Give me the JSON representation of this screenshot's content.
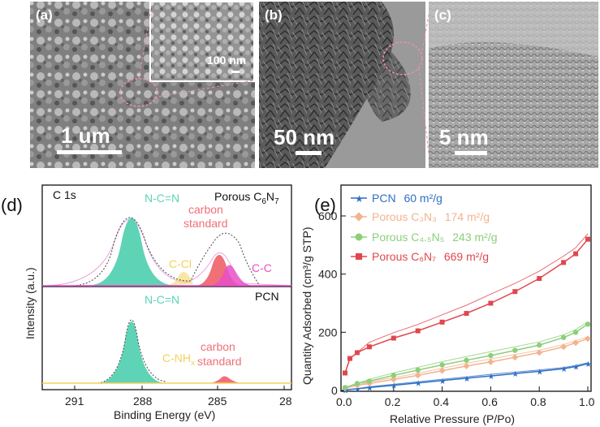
{
  "figure": {
    "panel_a": {
      "label": "(a)",
      "scale_main": "1 um",
      "scale_inset": "100 nm"
    },
    "panel_b": {
      "label": "(b)",
      "scale": "50 nm"
    },
    "panel_c": {
      "label": "(c)",
      "scale": "5 nm"
    },
    "panel_d": {
      "label": "(d)",
      "corner": "C 1s",
      "top_title": "Porous C",
      "top_sub6": "6",
      "top_N": "N",
      "top_sub7": "7",
      "bottom_title": "PCN",
      "xlabel": "Binding Energy (eV)",
      "ylabel": "Intensity (a.u.)",
      "xticks": [
        "291",
        "288",
        "285",
        "28"
      ],
      "ann": {
        "ncn_top": "N-C=N",
        "carbon_top_1": "carbon",
        "carbon_top_2": "standard",
        "ccl": "C-Cl",
        "cc": "C-C",
        "ncn_bot": "N-C=N",
        "cnh_main": "C-NH",
        "cnh_sub": "x",
        "carbon_bot_1": "carbon",
        "carbon_bot_2": "standard"
      },
      "colors": {
        "ncn": "#5fd3b6",
        "carbon": "#f07078",
        "ccl": "#f3d25a",
        "cc": "#e84fc8",
        "base": "#e6a7e0"
      }
    },
    "panel_e": {
      "label": "(e)",
      "xlabel": "Relative Pressure (P/Po)",
      "ylabel": "Quantity Adsorbed (cm³/g STP)",
      "xticks": [
        "0.0",
        "0.2",
        "0.4",
        "0.6",
        "0.8",
        "1.0"
      ],
      "yticks": [
        "0",
        "200",
        "400",
        "600"
      ],
      "legend": [
        {
          "name": "PCN",
          "value": "60 m²/g",
          "color": "#2f6fc4"
        },
        {
          "name": "Porous C₃N₃",
          "value": "174 m²/g",
          "color": "#f2b38f"
        },
        {
          "name": "Porous C₄.₅N₅",
          "value": "243 m²/g",
          "color": "#8ccf7a"
        },
        {
          "name": "Porous C₆N₇",
          "value": "669 m²/g",
          "color": "#e0474c"
        }
      ]
    }
  },
  "chart_data": {
    "type": "line",
    "xlabel": "Relative Pressure (P/Po)",
    "ylabel": "Quantity Adsorbed (cm³/g STP)",
    "xlim": [
      0,
      1
    ],
    "ylim": [
      0,
      600
    ],
    "series": [
      {
        "name": "PCN 60 m²/g",
        "x": [
          0.0,
          0.05,
          0.1,
          0.2,
          0.3,
          0.4,
          0.5,
          0.6,
          0.7,
          0.8,
          0.9,
          0.95,
          1.0
        ],
        "y": [
          2,
          6,
          10,
          18,
          26,
          34,
          42,
          50,
          58,
          66,
          75,
          82,
          92
        ]
      },
      {
        "name": "Porous C₃N₃ 174 m²/g",
        "x": [
          0.0,
          0.05,
          0.1,
          0.2,
          0.3,
          0.4,
          0.5,
          0.6,
          0.7,
          0.8,
          0.9,
          0.95,
          1.0
        ],
        "y": [
          8,
          18,
          24,
          38,
          52,
          68,
          84,
          98,
          114,
          130,
          150,
          164,
          178
        ]
      },
      {
        "name": "Porous C₄.₅N₅ 243 m²/g",
        "x": [
          0.0,
          0.05,
          0.1,
          0.2,
          0.3,
          0.4,
          0.5,
          0.6,
          0.7,
          0.8,
          0.9,
          0.95,
          1.0
        ],
        "y": [
          10,
          24,
          32,
          52,
          70,
          88,
          104,
          120,
          138,
          156,
          182,
          200,
          228
        ]
      },
      {
        "name": "Porous C₆N₇ 669 m²/g",
        "x": [
          0.0,
          0.02,
          0.05,
          0.1,
          0.2,
          0.3,
          0.4,
          0.5,
          0.6,
          0.7,
          0.8,
          0.9,
          0.95,
          1.0
        ],
        "y": [
          60,
          110,
          130,
          150,
          180,
          205,
          235,
          265,
          300,
          340,
          385,
          440,
          470,
          520
        ]
      }
    ]
  }
}
